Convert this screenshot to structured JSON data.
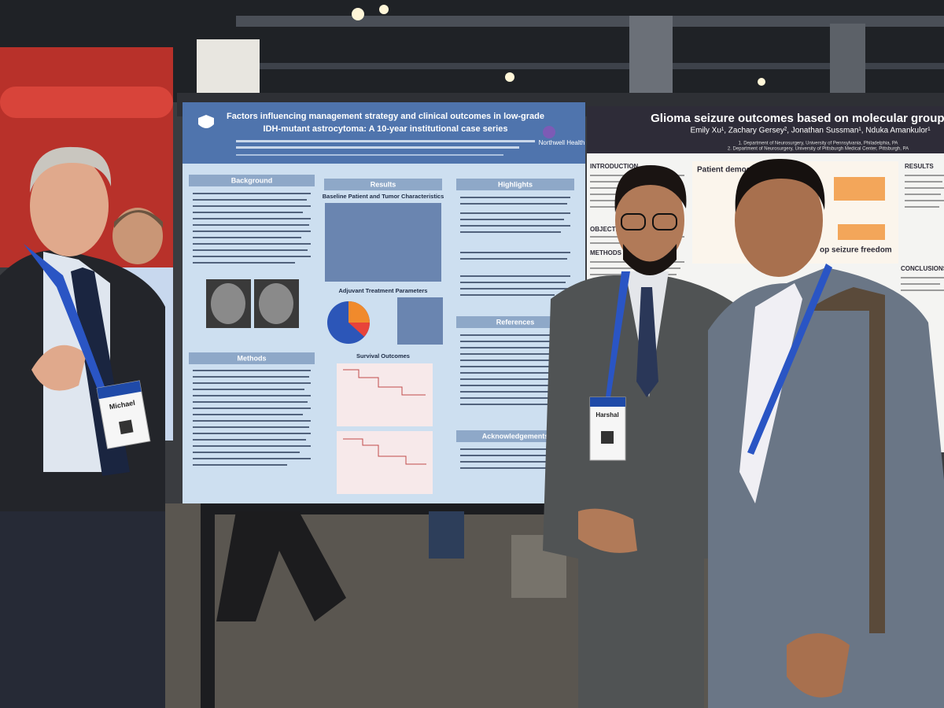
{
  "left_poster": {
    "title_lines": [
      "Factors influencing management strategy and clinical outcomes in low-grade",
      "IDH-mutant astrocytoma: A 10-year institutional case series"
    ],
    "logo": "Northwell Health",
    "sections": [
      "Background",
      "Results",
      "Highlights",
      "Methods",
      "References",
      "Acknowledgements"
    ],
    "subheadings": [
      "Baseline Patient and Tumor Characteristics",
      "Adjuvant Treatment Parameters",
      "Survival Outcomes"
    ]
  },
  "right_poster": {
    "title": "Glioma seizure outcomes based on molecular groups",
    "authors": "Emily Xu¹, Zachary Gersey², Jonathan Sussman¹, Nduka Amankulor¹",
    "affiliations": [
      "1. Department of Neurosurgery, University of Pennsylvania, Philadelphia, PA",
      "2. Department of Neurosurgery, University of Pittsburgh Medical Center, Pittsburgh, PA"
    ],
    "sections": [
      "INTRODUCTION",
      "OBJECTIVE",
      "METHODS",
      "RESULTS",
      "CONCLUSIONS"
    ],
    "chart_titles": [
      "Patient demogra",
      "op seizure freedom"
    ]
  },
  "badges": [
    "Michael",
    "Harshal"
  ]
}
